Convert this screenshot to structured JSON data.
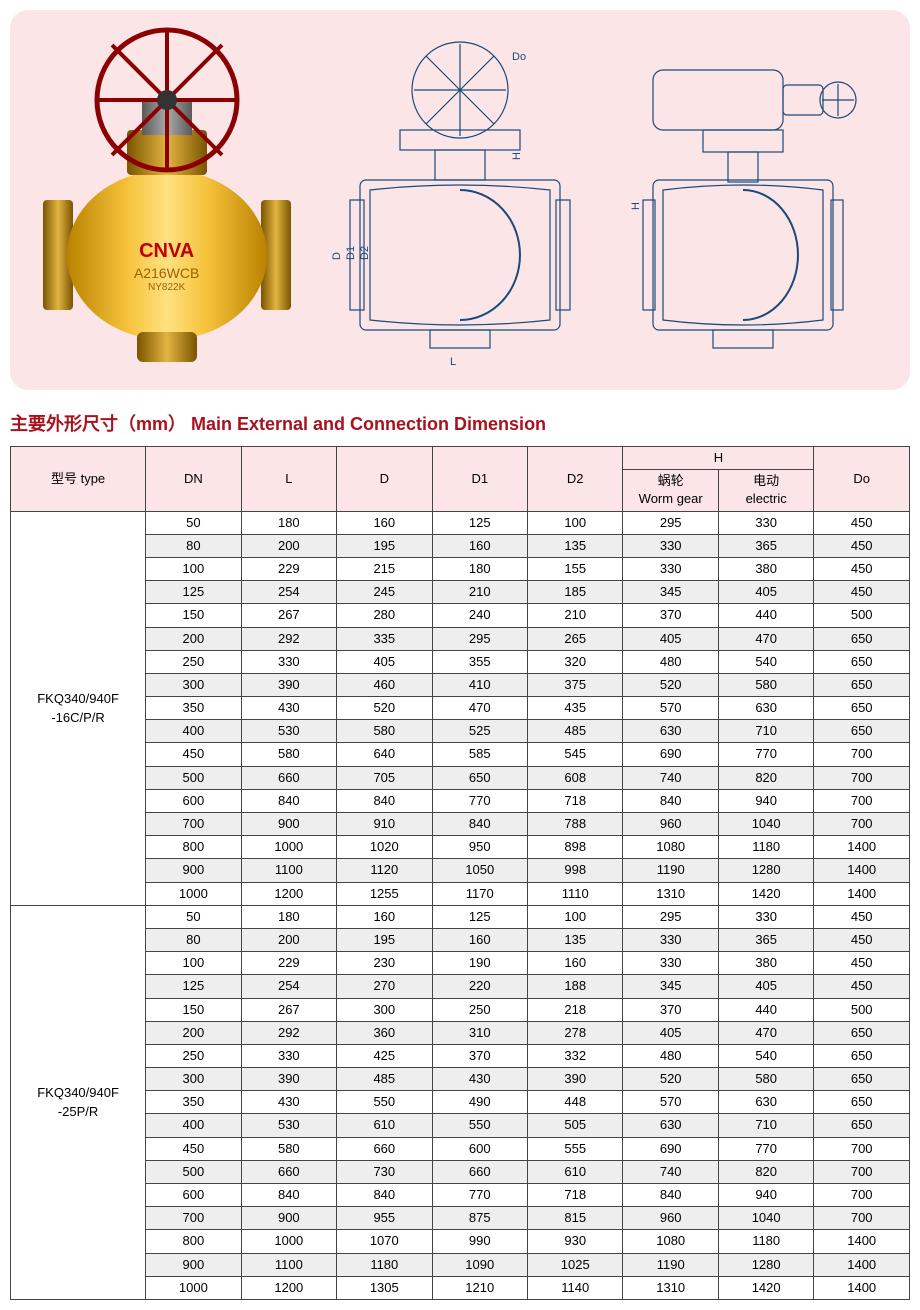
{
  "hero": {
    "background_color": "#fbe5e7",
    "logo": "CNVA",
    "model_label": "A216WCB",
    "small_label": "NY822K"
  },
  "section_title": "主要外形尺寸（mm） Main External and Connection Dimension",
  "table": {
    "header_bg": "#fbe5e7",
    "alt_row_bg": "#eeeeee",
    "columns": {
      "type": "型号 type",
      "dn": "DN",
      "l": "L",
      "d": "D",
      "d1": "D1",
      "d2": "D2",
      "h": "H",
      "h_worm": "蜗轮",
      "h_worm_en": "Worm gear",
      "h_elec": "电动",
      "h_elec_en": "electric",
      "do": "Do"
    },
    "groups": [
      {
        "type_line1": "FKQ340/940F",
        "type_line2": "-16C/P/R",
        "rows": [
          [
            50,
            180,
            160,
            125,
            100,
            295,
            330,
            450
          ],
          [
            80,
            200,
            195,
            160,
            135,
            330,
            365,
            450
          ],
          [
            100,
            229,
            215,
            180,
            155,
            330,
            380,
            450
          ],
          [
            125,
            254,
            245,
            210,
            185,
            345,
            405,
            450
          ],
          [
            150,
            267,
            280,
            240,
            210,
            370,
            440,
            500
          ],
          [
            200,
            292,
            335,
            295,
            265,
            405,
            470,
            650
          ],
          [
            250,
            330,
            405,
            355,
            320,
            480,
            540,
            650
          ],
          [
            300,
            390,
            460,
            410,
            375,
            520,
            580,
            650
          ],
          [
            350,
            430,
            520,
            470,
            435,
            570,
            630,
            650
          ],
          [
            400,
            530,
            580,
            525,
            485,
            630,
            710,
            650
          ],
          [
            450,
            580,
            640,
            585,
            545,
            690,
            770,
            700
          ],
          [
            500,
            660,
            705,
            650,
            608,
            740,
            820,
            700
          ],
          [
            600,
            840,
            840,
            770,
            718,
            840,
            940,
            700
          ],
          [
            700,
            900,
            910,
            840,
            788,
            960,
            1040,
            700
          ],
          [
            800,
            1000,
            1020,
            950,
            898,
            1080,
            1180,
            1400
          ],
          [
            900,
            1100,
            1120,
            1050,
            998,
            1190,
            1280,
            1400
          ],
          [
            1000,
            1200,
            1255,
            1170,
            1110,
            1310,
            1420,
            1400
          ]
        ]
      },
      {
        "type_line1": "FKQ340/940F",
        "type_line2": "-25P/R",
        "rows": [
          [
            50,
            180,
            160,
            125,
            100,
            295,
            330,
            450
          ],
          [
            80,
            200,
            195,
            160,
            135,
            330,
            365,
            450
          ],
          [
            100,
            229,
            230,
            190,
            160,
            330,
            380,
            450
          ],
          [
            125,
            254,
            270,
            220,
            188,
            345,
            405,
            450
          ],
          [
            150,
            267,
            300,
            250,
            218,
            370,
            440,
            500
          ],
          [
            200,
            292,
            360,
            310,
            278,
            405,
            470,
            650
          ],
          [
            250,
            330,
            425,
            370,
            332,
            480,
            540,
            650
          ],
          [
            300,
            390,
            485,
            430,
            390,
            520,
            580,
            650
          ],
          [
            350,
            430,
            550,
            490,
            448,
            570,
            630,
            650
          ],
          [
            400,
            530,
            610,
            550,
            505,
            630,
            710,
            650
          ],
          [
            450,
            580,
            660,
            600,
            555,
            690,
            770,
            700
          ],
          [
            500,
            660,
            730,
            660,
            610,
            740,
            820,
            700
          ],
          [
            600,
            840,
            840,
            770,
            718,
            840,
            940,
            700
          ],
          [
            700,
            900,
            955,
            875,
            815,
            960,
            1040,
            700
          ],
          [
            800,
            1000,
            1070,
            990,
            930,
            1080,
            1180,
            1400
          ],
          [
            900,
            1100,
            1180,
            1090,
            1025,
            1190,
            1280,
            1400
          ],
          [
            1000,
            1200,
            1305,
            1210,
            1140,
            1310,
            1420,
            1400
          ]
        ]
      }
    ]
  }
}
